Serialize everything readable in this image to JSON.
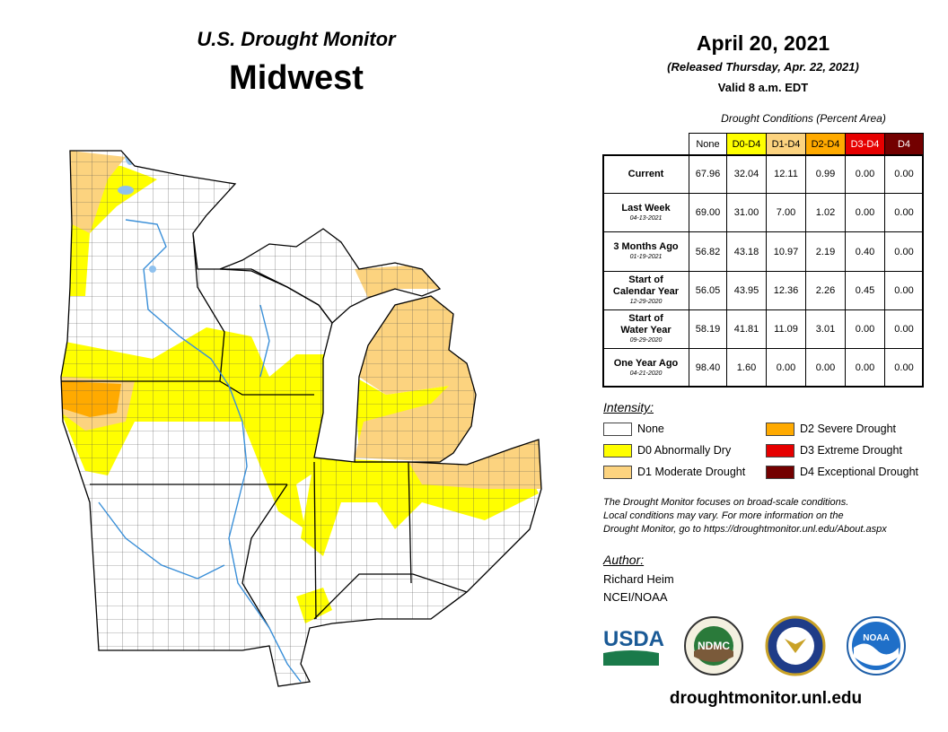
{
  "header": {
    "title": "U.S. Drought Monitor",
    "region": "Midwest",
    "date": "April 20, 2021",
    "released": "(Released Thursday, Apr. 22, 2021)",
    "valid": "Valid 8 a.m. EDT"
  },
  "table": {
    "caption": "Drought Conditions (Percent Area)",
    "columns": [
      "None",
      "D0-D4",
      "D1-D4",
      "D2-D4",
      "D3-D4",
      "D4"
    ],
    "column_colors": [
      "#ffffff",
      "#ffff00",
      "#fcd37f",
      "#ffaa00",
      "#e60000",
      "#730000"
    ],
    "rows": [
      {
        "label": [
          "Current"
        ],
        "values": [
          "67.96",
          "32.04",
          "12.11",
          "0.99",
          "0.00",
          "0.00"
        ]
      },
      {
        "label": [
          "Last Week"
        ],
        "date": "04-13-2021",
        "values": [
          "69.00",
          "31.00",
          "7.00",
          "1.02",
          "0.00",
          "0.00"
        ]
      },
      {
        "label": [
          "3 Months Ago"
        ],
        "date": "01-19-2021",
        "values": [
          "56.82",
          "43.18",
          "10.97",
          "2.19",
          "0.40",
          "0.00"
        ]
      },
      {
        "label": [
          "Start of",
          "Calendar Year"
        ],
        "date": "12-29-2020",
        "values": [
          "56.05",
          "43.95",
          "12.36",
          "2.26",
          "0.45",
          "0.00"
        ]
      },
      {
        "label": [
          "Start of",
          "Water Year"
        ],
        "date": "09-29-2020",
        "values": [
          "58.19",
          "41.81",
          "11.09",
          "3.01",
          "0.00",
          "0.00"
        ]
      },
      {
        "label": [
          "One Year Ago"
        ],
        "date": "04-21-2020",
        "values": [
          "98.40",
          "1.60",
          "0.00",
          "0.00",
          "0.00",
          "0.00"
        ]
      }
    ]
  },
  "legend": {
    "title": "Intensity:",
    "items": [
      {
        "label": "None",
        "color": "#ffffff"
      },
      {
        "label": "D0 Abnormally Dry",
        "color": "#ffff00"
      },
      {
        "label": "D1 Moderate Drought",
        "color": "#fcd37f"
      },
      {
        "label": "D2 Severe Drought",
        "color": "#ffaa00"
      },
      {
        "label": "D3 Extreme Drought",
        "color": "#e60000"
      },
      {
        "label": "D4 Exceptional Drought",
        "color": "#730000"
      }
    ]
  },
  "note": [
    "The Drought Monitor focuses on broad-scale conditions.",
    "Local conditions may vary. For more information on the",
    "Drought Monitor, go to https://droughtmonitor.unl.edu/About.aspx"
  ],
  "author": {
    "title": "Author:",
    "lines": [
      "Richard Heim",
      "NCEI/NOAA"
    ]
  },
  "logos": {
    "usda": "USDA",
    "ndmc": "NDMC",
    "noaa": "NOAA"
  },
  "url": "droughtmonitor.unl.edu"
}
